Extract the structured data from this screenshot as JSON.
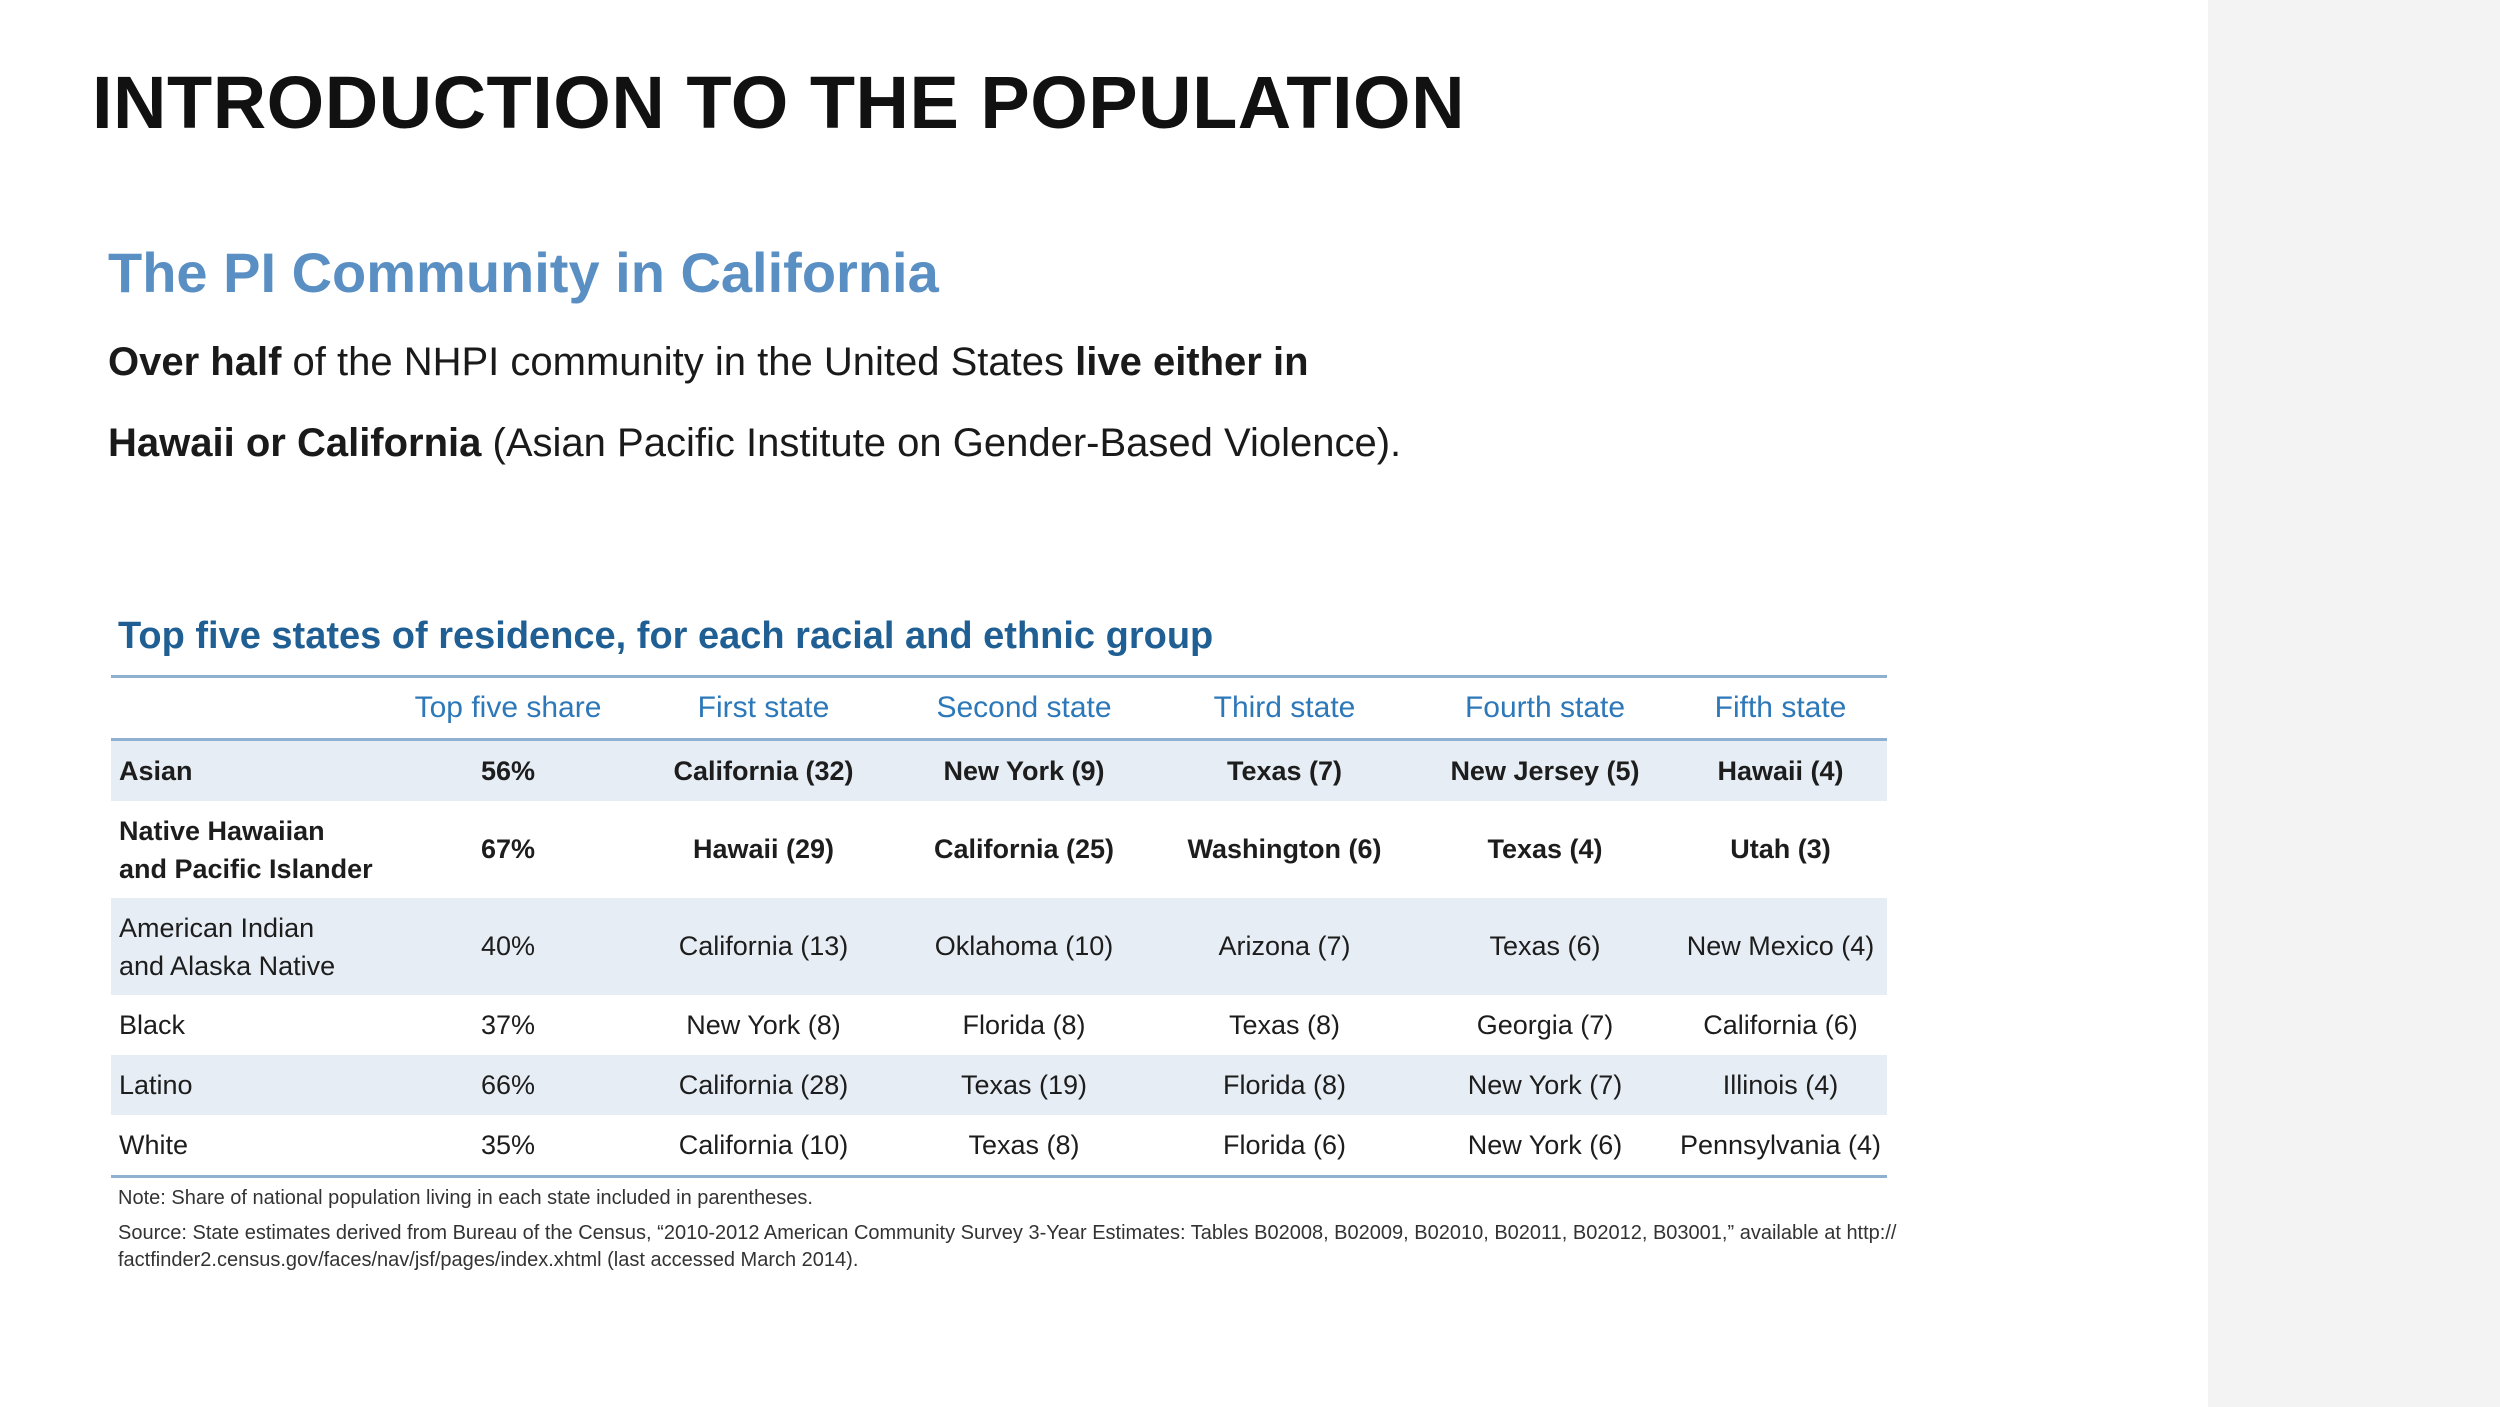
{
  "slide": {
    "title": "INTRODUCTION TO THE POPULATION",
    "subtitle": "The PI Community in California",
    "body": {
      "p1_bold": "Over half",
      "p1_text": " of the NHPI community in the United States ",
      "p1_bold2": "live either in",
      "p2_bold": "Hawaii or California",
      "p2_text": " (Asian Pacific Institute on Gender-Based Violence)."
    }
  },
  "table": {
    "title": "Top five states of residence, for each racial and ethnic group",
    "headers": [
      "",
      "Top five share",
      "First state",
      "Second state",
      "Third state",
      "Fourth state",
      "Fifth state"
    ],
    "rows": [
      {
        "group": "Asian",
        "share": "56%",
        "first": "California (32)",
        "second": "New York (9)",
        "third": "Texas (7)",
        "fourth": "New Jersey (5)",
        "fifth": "Hawaii (4)"
      },
      {
        "group_l1": "Native Hawaiian",
        "group_l2": "and Pacific Islander",
        "share": "67%",
        "first": "Hawaii (29)",
        "second": "California (25)",
        "third": "Washington (6)",
        "fourth": "Texas (4)",
        "fifth": "Utah (3)"
      },
      {
        "group_l1": "American Indian",
        "group_l2": "and Alaska Native",
        "share": "40%",
        "first": "California (13)",
        "second": "Oklahoma (10)",
        "third": "Arizona (7)",
        "fourth": "Texas (6)",
        "fifth": "New Mexico (4)"
      },
      {
        "group": "Black",
        "share": "37%",
        "first": "New York (8)",
        "second": "Florida (8)",
        "third": "Texas (8)",
        "fourth": "Georgia (7)",
        "fifth": "California (6)"
      },
      {
        "group": "Latino",
        "share": "66%",
        "first": "California (28)",
        "second": "Texas (19)",
        "third": "Florida (8)",
        "fourth": "New York (7)",
        "fifth": "Illinois (4)"
      },
      {
        "group": "White",
        "share": "35%",
        "first": "California (10)",
        "second": "Texas (8)",
        "third": "Florida (6)",
        "fourth": "New York (6)",
        "fifth": "Pennsylvania (4)"
      }
    ],
    "note": "Note: Share of national population living in each state included in parentheses.",
    "source_l1": "Source: State estimates derived from Bureau of the Census, “2010-2012 American Community Survey 3-Year Estimates: Tables B02008, B02009, B02010, B02011, B02012, B03001,” available at http://",
    "source_l2": "factfinder2.census.gov/faces/nav/jsf/pages/index.xhtml (last accessed March 2014)."
  }
}
